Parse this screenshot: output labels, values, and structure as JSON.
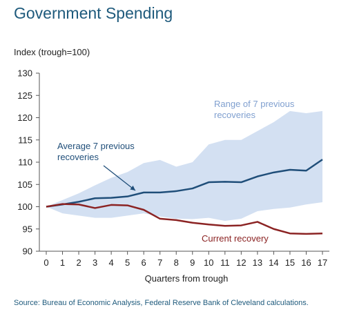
{
  "title": "Government Spending",
  "source": "Source: Bureau of Economic Analysis, Federal Reserve Bank of Cleveland calculations.",
  "colors": {
    "title": "#1e5a7c",
    "average": "#1f4e79",
    "current": "#8b2323",
    "range_fill": "#d3e0f2",
    "range_text": "#7f9fcf",
    "axis": "#555555"
  },
  "chart_data": {
    "type": "line",
    "title": "Government Spending",
    "xlabel": "Quarters from trough",
    "ylabel": "Index (trough=100)",
    "x": [
      0,
      1,
      2,
      3,
      4,
      5,
      6,
      7,
      8,
      9,
      10,
      11,
      12,
      13,
      14,
      15,
      16,
      17
    ],
    "ylim": [
      90,
      130
    ],
    "yticks": [
      90,
      95,
      100,
      105,
      110,
      115,
      120,
      125,
      130
    ],
    "grid": false,
    "series": [
      {
        "name": "Average 7 previous recoveries",
        "values": [
          100,
          100.5,
          101.1,
          101.9,
          102,
          102.3,
          103.2,
          103.2,
          103.5,
          104.1,
          105.5,
          105.6,
          105.5,
          106.8,
          107.7,
          108.3,
          108.1,
          110.6
        ]
      },
      {
        "name": "Current recovery",
        "values": [
          100,
          100.6,
          100.5,
          99.7,
          100.4,
          100.3,
          99.3,
          97.3,
          97,
          96.4,
          96,
          95.7,
          95.8,
          96.6,
          95,
          94,
          93.9,
          94
        ]
      }
    ],
    "range": {
      "name": "Range of 7 previous recoveries",
      "upper": [
        100,
        101.5,
        103,
        104.8,
        106.5,
        107.8,
        109.8,
        110.5,
        109,
        110,
        114,
        115,
        115,
        117,
        119,
        121.5,
        121,
        121.5
      ],
      "lower": [
        100,
        98.5,
        98,
        97.5,
        97.5,
        98,
        98.5,
        97.8,
        97.3,
        97.2,
        97.5,
        96.8,
        97.3,
        99,
        99.5,
        99.8,
        100.5,
        101
      ]
    },
    "annotations": [
      {
        "text_lines": [
          "Range of 7 previous",
          "recoveries"
        ],
        "target": "range"
      },
      {
        "text_lines": [
          "Average 7 previous",
          "recoveries"
        ],
        "target": "average"
      },
      {
        "text_lines": [
          "Current recovery"
        ],
        "target": "current"
      }
    ]
  }
}
